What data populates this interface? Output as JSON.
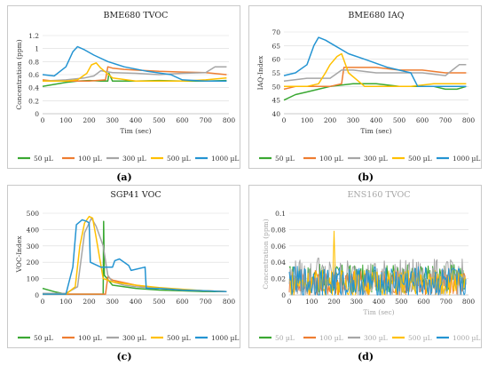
{
  "panels": [
    {
      "id": "a",
      "label": "(a)",
      "chart_data": {
        "type": "line",
        "title": "BME680 TVOC",
        "title_color": "#222222",
        "xlabel": "Tim (sec)",
        "ylabel": "Concentration (ppm)",
        "xlim": [
          0,
          800
        ],
        "ylim": [
          0,
          1.2
        ],
        "xticks": [
          0,
          100,
          200,
          300,
          400,
          500,
          600,
          700,
          800
        ],
        "yticks": [
          0,
          0.2,
          0.4,
          0.6,
          0.8,
          1,
          1.2
        ],
        "ytick_labels": [
          "0",
          "0.2",
          "0.4",
          "0.6",
          "0.8",
          "1",
          "1.2"
        ],
        "grid": true,
        "legend_position": "bottom",
        "series": [
          {
            "name": "50 µL",
            "color": "#3aa832",
            "x": [
              0,
              50,
              100,
              150,
              200,
              250,
              280,
              285,
              300,
              400,
              500,
              600,
              700,
              790
            ],
            "y": [
              0.42,
              0.45,
              0.48,
              0.5,
              0.51,
              0.5,
              0.5,
              0.62,
              0.5,
              0.5,
              0.51,
              0.5,
              0.5,
              0.51
            ]
          },
          {
            "name": "100 µL",
            "color": "#ee7d31",
            "x": [
              0,
              50,
              100,
              200,
              270,
              280,
              300,
              350,
              400,
              500,
              600,
              700,
              790
            ],
            "y": [
              0.52,
              0.5,
              0.5,
              0.5,
              0.52,
              0.72,
              0.7,
              0.68,
              0.67,
              0.65,
              0.64,
              0.63,
              0.6
            ]
          },
          {
            "name": "300 µL",
            "color": "#a6a6a6",
            "x": [
              0,
              100,
              180,
              220,
              250,
              300,
              400,
              500,
              600,
              700,
              740,
              790
            ],
            "y": [
              0.5,
              0.52,
              0.55,
              0.58,
              0.66,
              0.63,
              0.62,
              0.6,
              0.62,
              0.63,
              0.72,
              0.72
            ]
          },
          {
            "name": "500 µL",
            "color": "#ffc000",
            "x": [
              0,
              100,
              150,
              190,
              210,
              230,
              250,
              300,
              400,
              500,
              600,
              700,
              790
            ],
            "y": [
              0.5,
              0.5,
              0.52,
              0.62,
              0.75,
              0.78,
              0.7,
              0.55,
              0.5,
              0.5,
              0.5,
              0.52,
              0.55
            ]
          },
          {
            "name": "1000 µL",
            "color": "#2494d2",
            "x": [
              0,
              50,
              100,
              130,
              150,
              180,
              220,
              280,
              350,
              450,
              550,
              600,
              700,
              790
            ],
            "y": [
              0.6,
              0.58,
              0.72,
              0.95,
              1.03,
              0.98,
              0.9,
              0.8,
              0.72,
              0.65,
              0.6,
              0.52,
              0.5,
              0.5
            ]
          }
        ]
      }
    },
    {
      "id": "b",
      "label": "(b)",
      "chart_data": {
        "type": "line",
        "title": "BME680 IAQ",
        "title_color": "#222222",
        "xlabel": "Tim (sec)",
        "ylabel": "IAQ-Index",
        "xlim": [
          0,
          800
        ],
        "ylim": [
          40,
          70
        ],
        "xticks": [
          0,
          100,
          200,
          300,
          400,
          500,
          600,
          700,
          800
        ],
        "yticks": [
          40,
          45,
          50,
          55,
          60,
          65,
          70
        ],
        "ytick_labels": [
          "40",
          "45",
          "50",
          "55",
          "60",
          "65",
          "70"
        ],
        "grid": true,
        "legend_position": "bottom",
        "series": [
          {
            "name": "50 µL",
            "color": "#3aa832",
            "x": [
              0,
              50,
              100,
              150,
              200,
              250,
              300,
              400,
              500,
              600,
              650,
              700,
              750,
              790
            ],
            "y": [
              45,
              47,
              48,
              49,
              50,
              50.5,
              51,
              51,
              50,
              50,
              50,
              49,
              49,
              50
            ]
          },
          {
            "name": "100 µL",
            "color": "#ee7d31",
            "x": [
              0,
              50,
              100,
              200,
              250,
              260,
              300,
              400,
              500,
              600,
              700,
              790
            ],
            "y": [
              49,
              50,
              50,
              50,
              51,
              57,
              57,
              57,
              56,
              56,
              55,
              55
            ]
          },
          {
            "name": "300 µL",
            "color": "#a6a6a6",
            "x": [
              0,
              100,
              200,
              250,
              300,
              400,
              500,
              600,
              700,
              760,
              790
            ],
            "y": [
              52,
              53,
              53,
              56,
              56,
              55,
              55,
              55,
              54,
              58,
              58
            ]
          },
          {
            "name": "500 µL",
            "color": "#ffc000",
            "x": [
              0,
              100,
              150,
              180,
              200,
              230,
              250,
              280,
              350,
              450,
              550,
              650,
              790
            ],
            "y": [
              50,
              50,
              51,
              55,
              58,
              61,
              62,
              55,
              50,
              50,
              50,
              51,
              51
            ]
          },
          {
            "name": "1000 µL",
            "color": "#2494d2",
            "x": [
              0,
              50,
              100,
              130,
              150,
              180,
              220,
              280,
              350,
              450,
              550,
              580,
              650,
              790
            ],
            "y": [
              54,
              55,
              58,
              65,
              68,
              67,
              65,
              62,
              60,
              57,
              55,
              50,
              50,
              50
            ]
          }
        ]
      }
    },
    {
      "id": "c",
      "label": "(c)",
      "chart_data": {
        "type": "line",
        "title": "SGP41 VOC",
        "title_color": "#222222",
        "xlabel": "",
        "ylabel": "VOC-Index",
        "xlim": [
          0,
          800
        ],
        "ylim": [
          0,
          500
        ],
        "xticks": [
          0,
          100,
          200,
          300,
          400,
          500,
          600,
          700,
          800
        ],
        "yticks": [
          0,
          100,
          200,
          300,
          400,
          500
        ],
        "ytick_labels": [
          "0",
          "100",
          "200",
          "300",
          "400",
          "500"
        ],
        "grid": true,
        "legend_position": "bottom",
        "series": [
          {
            "name": "50 µL",
            "color": "#3aa832",
            "x": [
              0,
              50,
              100,
              200,
              260,
              262,
              265,
              300,
              400,
              500,
              600,
              700,
              790
            ],
            "y": [
              40,
              20,
              5,
              5,
              5,
              450,
              120,
              60,
              40,
              30,
              25,
              20,
              20
            ]
          },
          {
            "name": "100 µL",
            "color": "#ee7d31",
            "x": [
              0,
              100,
              200,
              270,
              280,
              300,
              400,
              500,
              600,
              700,
              790
            ],
            "y": [
              5,
              5,
              5,
              5,
              110,
              90,
              60,
              40,
              30,
              25,
              20
            ]
          },
          {
            "name": "300 µL",
            "color": "#a6a6a6",
            "x": [
              0,
              100,
              150,
              180,
              210,
              230,
              260,
              280,
              300,
              350,
              400,
              500,
              600,
              700,
              790
            ],
            "y": [
              10,
              10,
              50,
              380,
              470,
              420,
              300,
              120,
              80,
              60,
              50,
              40,
              30,
              25,
              20
            ]
          },
          {
            "name": "500 µL",
            "color": "#ffc000",
            "x": [
              0,
              100,
              140,
              160,
              180,
              200,
              215,
              230,
              260,
              300,
              400,
              500,
              600,
              700,
              790
            ],
            "y": [
              5,
              5,
              50,
              300,
              440,
              480,
              470,
              350,
              100,
              80,
              60,
              45,
              35,
              25,
              20
            ]
          },
          {
            "name": "1000 µL",
            "color": "#2494d2",
            "x": [
              0,
              100,
              130,
              145,
              170,
              190,
              200,
              205,
              250,
              300,
              310,
              330,
              370,
              380,
              440,
              445,
              500,
              600,
              700,
              790
            ],
            "y": [
              5,
              5,
              170,
              430,
              460,
              450,
              440,
              200,
              170,
              170,
              210,
              220,
              180,
              150,
              170,
              40,
              40,
              30,
              25,
              20
            ]
          }
        ]
      }
    },
    {
      "id": "d",
      "label": "(d)",
      "chart_data": {
        "type": "line",
        "title": "ENS160 TVOC",
        "title_color": "#a6a6a6",
        "xlabel": "Tim (sec)",
        "ylabel": "Concentration (ppm)",
        "xlim": [
          0,
          800
        ],
        "ylim": [
          0,
          0.1
        ],
        "xticks": [
          0,
          100,
          200,
          300,
          400,
          500,
          600,
          700,
          800
        ],
        "yticks": [
          0,
          0.02,
          0.04,
          0.06,
          0.08,
          0.1
        ],
        "ytick_labels": [
          "0",
          "0.02",
          "0.04",
          "0.06",
          "0.08",
          "0.1"
        ],
        "grid": true,
        "legend_position": "bottom",
        "noisy": true,
        "series": [
          {
            "name": "50 µL",
            "color": "#3aa832",
            "base": 0.02,
            "amp": 0.022
          },
          {
            "name": "100 µL",
            "color": "#ee7d31",
            "base": 0.015,
            "amp": 0.02
          },
          {
            "name": "300 µL",
            "color": "#a6a6a6",
            "base": 0.02,
            "amp": 0.03,
            "spike_x": 130,
            "spike_y": 0.06
          },
          {
            "name": "500 µL",
            "color": "#ffc000",
            "base": 0.015,
            "amp": 0.02,
            "spike_x": 200,
            "spike_y": 0.078
          },
          {
            "name": "1000 µL",
            "color": "#2494d2",
            "base": 0.015,
            "amp": 0.025
          }
        ]
      }
    }
  ]
}
